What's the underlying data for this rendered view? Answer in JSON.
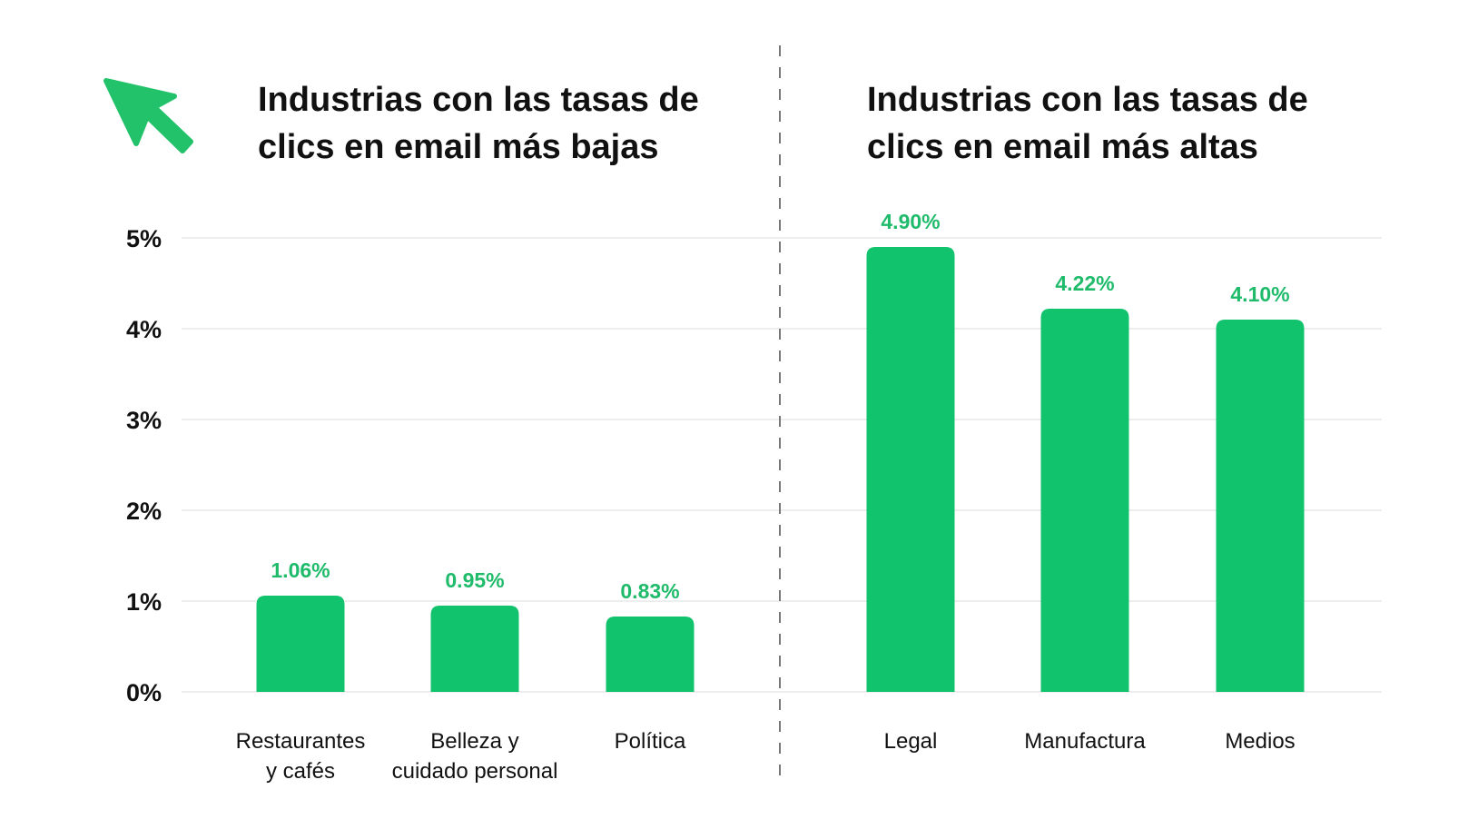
{
  "colors": {
    "bar": "#10c36c",
    "label": "#1fbb6b",
    "arrow": "#22c26b",
    "grid": "#eeeeee",
    "divider": "#777777"
  },
  "icon": "cursor-arrow-icon",
  "chart_data": [
    {
      "type": "bar",
      "title": [
        "Industrias con las tasas de",
        "clics en email más bajas"
      ],
      "categories": [
        [
          "Restaurantes",
          "y cafés"
        ],
        [
          "Belleza y",
          "cuidado personal"
        ],
        [
          "Política"
        ]
      ],
      "values": [
        1.06,
        0.95,
        0.83
      ],
      "value_labels": [
        "1.06%",
        "0.95%",
        "0.83%"
      ],
      "yticks": [
        "0%",
        "1%",
        "2%",
        "3%",
        "4%",
        "5%"
      ],
      "ylim": [
        0,
        5
      ],
      "grid": true
    },
    {
      "type": "bar",
      "title": [
        "Industrias con las tasas de",
        "clics en email más altas"
      ],
      "categories": [
        [
          "Legal"
        ],
        [
          "Manufactura"
        ],
        [
          "Medios"
        ]
      ],
      "values": [
        4.9,
        4.22,
        4.1
      ],
      "value_labels": [
        "4.90%",
        "4.22%",
        "4.10%"
      ],
      "ylim": [
        0,
        5
      ],
      "grid": true
    }
  ]
}
